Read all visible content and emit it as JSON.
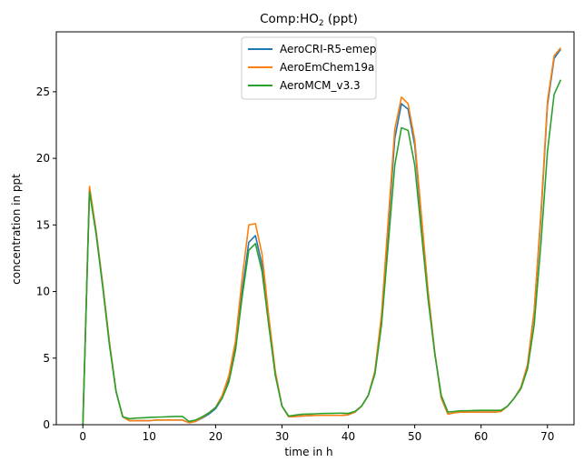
{
  "chart_data": {
    "type": "line",
    "title_main": "Comp:HO",
    "title_sub": "2",
    "title_tail": " (ppt)",
    "xlabel": "time in h",
    "ylabel": "concentration in ppt",
    "xlim": [
      -4,
      74
    ],
    "ylim": [
      0,
      29.5
    ],
    "xticks": [
      0,
      10,
      20,
      30,
      40,
      50,
      60,
      70
    ],
    "yticks": [
      0,
      5,
      10,
      15,
      20,
      25
    ],
    "legend_position": "upper-center",
    "x": [
      0,
      1,
      2,
      3,
      4,
      5,
      6,
      7,
      8,
      9,
      10,
      11,
      12,
      13,
      14,
      15,
      16,
      17,
      18,
      19,
      20,
      21,
      22,
      23,
      24,
      25,
      26,
      27,
      28,
      29,
      30,
      31,
      32,
      33,
      34,
      35,
      36,
      37,
      38,
      39,
      40,
      41,
      42,
      43,
      44,
      45,
      46,
      47,
      48,
      49,
      50,
      51,
      52,
      53,
      54,
      55,
      56,
      57,
      58,
      59,
      60,
      61,
      62,
      63,
      64,
      65,
      66,
      67,
      68,
      69,
      70,
      71,
      72
    ],
    "series": [
      {
        "name": "AeroCRI-R5-emep",
        "color": "#1f77b4",
        "values": [
          0,
          17.8,
          14.5,
          10.5,
          6.2,
          2.5,
          0.6,
          0.3,
          0.3,
          0.3,
          0.3,
          0.35,
          0.35,
          0.35,
          0.35,
          0.35,
          0.15,
          0.25,
          0.5,
          0.8,
          1.2,
          2.0,
          3.4,
          5.8,
          10.0,
          13.7,
          14.2,
          12.0,
          7.8,
          3.8,
          1.4,
          0.6,
          0.62,
          0.65,
          0.68,
          0.7,
          0.7,
          0.7,
          0.7,
          0.7,
          0.75,
          0.95,
          1.4,
          2.2,
          4.0,
          8.0,
          14.8,
          21.5,
          24.1,
          23.7,
          21.0,
          15.5,
          10.0,
          5.5,
          2.0,
          0.8,
          0.9,
          0.95,
          0.95,
          0.95,
          0.95,
          0.95,
          0.95,
          1.0,
          1.4,
          2.0,
          2.8,
          4.5,
          8.5,
          15.5,
          24.0,
          27.5,
          28.2
        ]
      },
      {
        "name": "AeroEmChem19a",
        "color": "#ff7f0e",
        "values": [
          0,
          17.9,
          14.5,
          10.5,
          6.2,
          2.5,
          0.6,
          0.3,
          0.3,
          0.3,
          0.3,
          0.35,
          0.35,
          0.35,
          0.35,
          0.35,
          0.15,
          0.25,
          0.55,
          0.9,
          1.3,
          2.2,
          3.7,
          6.3,
          11.0,
          15.0,
          15.1,
          12.8,
          8.2,
          4.0,
          1.4,
          0.6,
          0.62,
          0.65,
          0.68,
          0.7,
          0.7,
          0.7,
          0.7,
          0.7,
          0.75,
          0.95,
          1.4,
          2.2,
          4.0,
          8.3,
          15.3,
          22.2,
          24.6,
          24.1,
          21.4,
          15.8,
          10.1,
          5.5,
          2.0,
          0.8,
          0.9,
          0.95,
          0.95,
          0.95,
          0.95,
          0.95,
          0.95,
          1.0,
          1.4,
          2.0,
          2.8,
          4.5,
          8.6,
          15.8,
          24.3,
          27.7,
          28.3
        ]
      },
      {
        "name": "AeroMCM_v3.3",
        "color": "#2ca02c",
        "values": [
          0,
          17.5,
          14.3,
          10.3,
          6.0,
          2.5,
          0.6,
          0.45,
          0.5,
          0.52,
          0.55,
          0.57,
          0.58,
          0.6,
          0.62,
          0.62,
          0.25,
          0.35,
          0.6,
          0.9,
          1.3,
          2.0,
          3.2,
          5.6,
          9.6,
          13.1,
          13.6,
          11.5,
          7.5,
          3.7,
          1.4,
          0.65,
          0.72,
          0.78,
          0.8,
          0.82,
          0.84,
          0.85,
          0.86,
          0.87,
          0.85,
          1.0,
          1.4,
          2.2,
          3.8,
          7.5,
          13.5,
          19.5,
          22.3,
          22.1,
          19.5,
          14.5,
          9.5,
          5.4,
          2.2,
          0.95,
          1.0,
          1.05,
          1.05,
          1.07,
          1.08,
          1.08,
          1.08,
          1.08,
          1.4,
          2.0,
          2.7,
          4.2,
          7.5,
          13.5,
          20.5,
          24.8,
          25.9
        ]
      }
    ]
  }
}
